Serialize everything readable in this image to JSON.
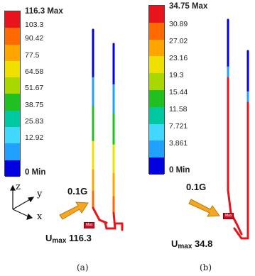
{
  "legend_colors": [
    "#e8141c",
    "#ff6a00",
    "#ffa500",
    "#f0e000",
    "#a8d800",
    "#20c020",
    "#00c8a0",
    "#40d8ff",
    "#20a0ff",
    "#0000e0"
  ],
  "panels": [
    {
      "legend": [
        "116.3 Max",
        "103.3",
        "90.42",
        "77.5",
        "64.58",
        "51.67",
        "38.75",
        "25.83",
        "12.92",
        "0 Min"
      ],
      "load": "0.1G",
      "umax_sub": "max",
      "umax_value": "116.3",
      "caption": "(a)",
      "max_tag": "Max"
    },
    {
      "legend": [
        "34.75 Max",
        "30.89",
        "27.02",
        "23.16",
        "19.3",
        "15.44",
        "11.58",
        "7.721",
        "3.861",
        "0 Min"
      ],
      "load": "0.1G",
      "umax_sub": "max",
      "umax_value": "34.8",
      "caption": "(b)",
      "max_tag": "Max"
    }
  ],
  "axes": {
    "z": "z",
    "y": "y",
    "x": "x"
  }
}
